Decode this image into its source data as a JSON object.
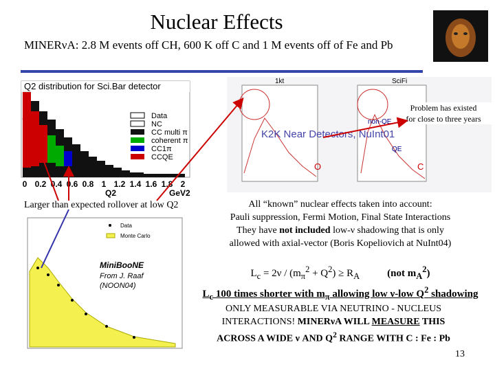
{
  "header": {
    "title": "Nuclear Effects",
    "subtitle": "MINERνA: 2.8 M events off CH, 600 K off C and 1 M events off of Fe and Pb"
  },
  "sci_bar_plot": {
    "title": "Q2 distribution for Sci.Bar detector",
    "legend": [
      "Data",
      "NC",
      "CC multi π",
      "coherent π",
      "CC1π",
      "CCQE"
    ],
    "x_ticks": [
      "0",
      "0.2",
      "0.4",
      "0.6",
      "0.8",
      "1",
      "1.2",
      "1.4",
      "1.6",
      "1.8",
      "2"
    ],
    "x_label": "Q2",
    "x_unit": "GeV2"
  },
  "k2k_plot": {
    "labels": [
      "1kt",
      "SciFi",
      "K2K Near Detectors, NuInt01",
      "non-QE",
      "QE",
      "O",
      "C"
    ],
    "note": [
      "Problem has existed",
      "for close to three years"
    ]
  },
  "rollover_note": "Larger than expected rollover at low Q2",
  "miniboone_plot": {
    "legend": [
      "Data",
      "Monte Carlo"
    ],
    "caption": [
      "MiniBooNE",
      "From J. Raaf",
      "(NOON04)"
    ]
  },
  "paragraph": {
    "lines": [
      "All “known” nuclear effects taken into account:",
      "Pauli suppression, Fermi Motion, Final State Interactions"
    ],
    "line3": [
      "They have ",
      "not included",
      " low-ν shadowing that is only"
    ],
    "line4": "allowed with axial-vector (Boris Kopeliovich at NuInt04)"
  },
  "formula": {
    "line1": [
      "L",
      "c",
      " = 2ν / (m",
      "π",
      "2",
      " + Q",
      "2",
      ")  ≥  R",
      "A",
      "(not m",
      "A",
      "2",
      ")"
    ],
    "line2": [
      "L",
      "c",
      " 100 times shorter with m",
      "π",
      " allowing low ν-low Q",
      "2",
      " shadowing"
    ]
  },
  "caps": {
    "line1": "ONLY MEASURABLE VIA NEUTRINO - NUCLEUS",
    "line2": [
      "INTERACTIONS!  ",
      "MINERνA WILL ",
      "MEASURE",
      " THIS"
    ],
    "line3": [
      "ACROSS A WIDE ν AND Q",
      "2",
      " RANGE WITH  C : Fe : Pb"
    ]
  },
  "page_number": "13"
}
